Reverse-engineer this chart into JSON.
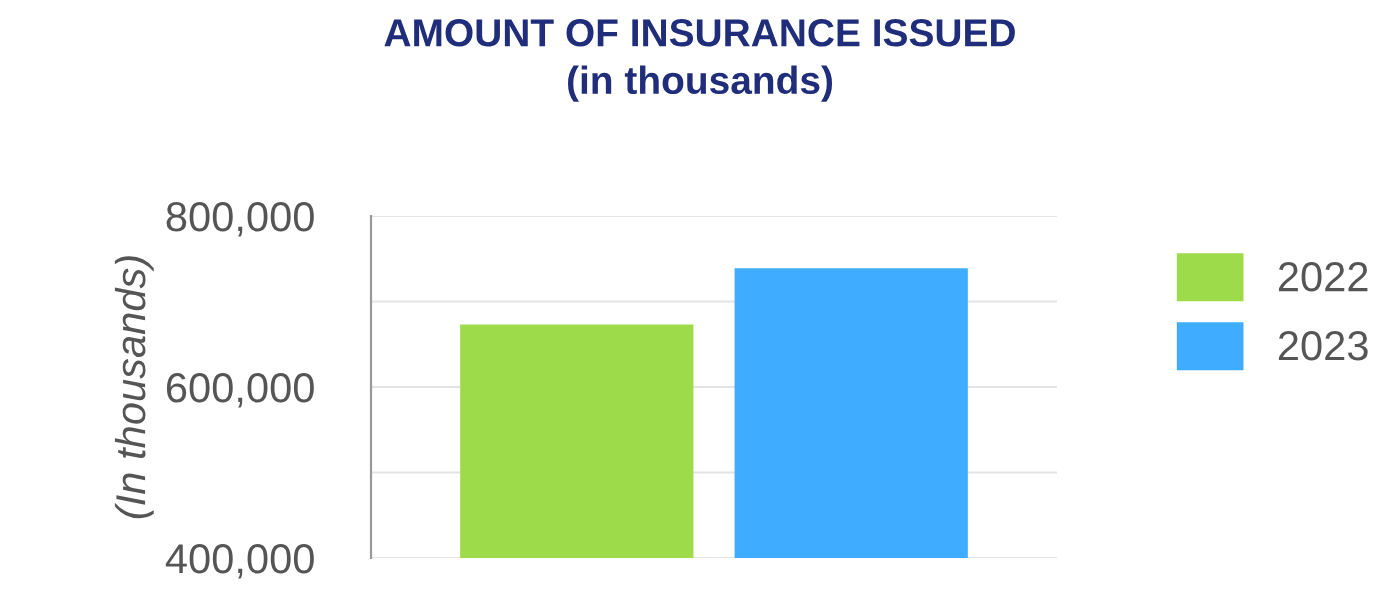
{
  "chart_data": {
    "type": "bar",
    "title": "AMOUNT OF INSURANCE ISSUED\n(in thousands)",
    "ylabel": "(In thousands)",
    "categories": [
      null
    ],
    "series": [
      {
        "name": "2022",
        "color": "#9edb4a",
        "values": [
          673000
        ]
      },
      {
        "name": "2023",
        "color": "#40acff",
        "values": [
          739000
        ]
      }
    ],
    "ylim": [
      400000,
      800000
    ],
    "yticks": [
      {
        "value": 400000,
        "label": "400,000"
      },
      {
        "value": 500000,
        "label": null
      },
      {
        "value": 600000,
        "label": "600,000"
      },
      {
        "value": 700000,
        "label": null
      },
      {
        "value": 800000,
        "label": "800,000"
      }
    ],
    "grid": "y",
    "legend": "right"
  }
}
